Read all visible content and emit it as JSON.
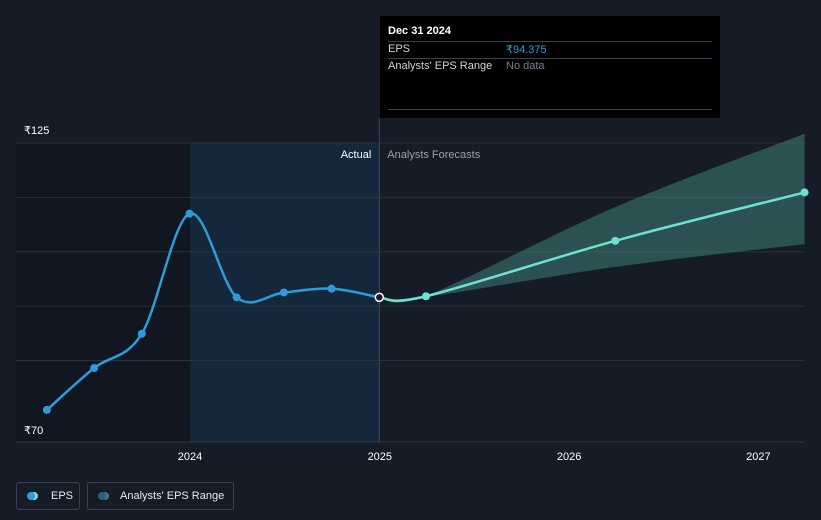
{
  "chart_data": {
    "type": "line",
    "x_ticks": [
      "2024",
      "2025",
      "2026",
      "2027"
    ],
    "y_ticks": [
      "₹125",
      "₹70"
    ],
    "ylim": [
      70,
      125
    ],
    "section_labels": {
      "actual": "Actual",
      "forecast": "Analysts Forecasts"
    },
    "series": [
      {
        "name": "EPS",
        "role": "actual",
        "color": "#2d9cdb",
        "points": [
          {
            "x": "2023-03-31",
            "y": 73.7
          },
          {
            "x": "2023-06-30",
            "y": 81.4
          },
          {
            "x": "2023-09-30",
            "y": 87.7
          },
          {
            "x": "2023-12-31",
            "y": 109.8
          },
          {
            "x": "2024-03-31",
            "y": 94.4
          },
          {
            "x": "2024-06-30",
            "y": 95.3
          },
          {
            "x": "2024-09-30",
            "y": 96.0
          },
          {
            "x": "2024-12-31",
            "y": 94.4
          }
        ]
      },
      {
        "name": "EPS",
        "role": "forecast",
        "color": "#6ee2d1",
        "points": [
          {
            "x": "2024-12-31",
            "y": 94.4
          },
          {
            "x": "2025-03-31",
            "y": 94.6
          },
          {
            "x": "2026-03-31",
            "y": 104.8
          },
          {
            "x": "2027-03-31",
            "y": 113.7
          }
        ]
      }
    ],
    "forecast_range": {
      "name": "Analysts' EPS Range",
      "color": "#3f7d76",
      "points": [
        {
          "x": "2024-12-31",
          "low": 94.4,
          "high": 94.4
        },
        {
          "x": "2025-03-31",
          "low": 94.5,
          "high": 94.7
        },
        {
          "x": "2026-03-31",
          "low": 100.0,
          "high": 111.0
        },
        {
          "x": "2027-03-31",
          "low": 104.2,
          "high": 124.5
        }
      ]
    }
  },
  "tooltip": {
    "date": "Dec 31 2024",
    "rows": [
      {
        "label": "EPS",
        "value": "₹94.375",
        "value_color": "#2d9cdb"
      },
      {
        "label": "Analysts' EPS Range",
        "value": "No data",
        "value_color": "#7a808a"
      }
    ]
  },
  "legend": {
    "items": [
      {
        "label": "EPS"
      },
      {
        "label": "Analysts' EPS Range"
      }
    ]
  }
}
